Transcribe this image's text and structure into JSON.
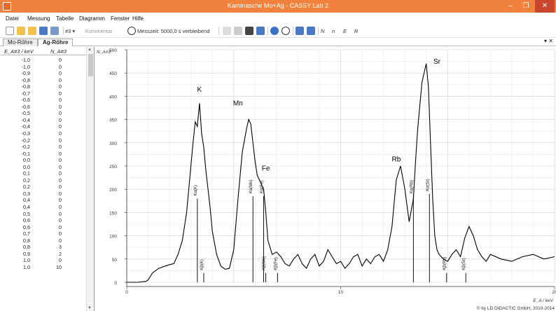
{
  "window": {
    "title": "Kaminasche Mo+Ag - CASSY Lab 2",
    "minimize": "–",
    "maximize": "❐",
    "close": "✕"
  },
  "menu": [
    "Datei",
    "Messung",
    "Tabelle",
    "Diagramm",
    "Fenster",
    "Hilfe"
  ],
  "toolbar": {
    "channel": "#3 ▾",
    "comment_placeholder": "Kommentar",
    "measure_time": "Messzeit: 5000,0 s verbleibend",
    "sym1": "N",
    "sym2": "n",
    "sym3": "E",
    "sym4": "R"
  },
  "tabs": [
    "Mo-Röhre",
    "Ag-Röhre"
  ],
  "table": {
    "col1": "E_A#3 / keV",
    "col2": "N_A#3",
    "rows": [
      [
        "-1,0",
        "0"
      ],
      [
        "-1,0",
        "0"
      ],
      [
        "-0,9",
        "0"
      ],
      [
        "-0,8",
        "0"
      ],
      [
        "-0,8",
        "0"
      ],
      [
        "-0,7",
        "0"
      ],
      [
        "-0,6",
        "0"
      ],
      [
        "-0,6",
        "0"
      ],
      [
        "-0,5",
        "0"
      ],
      [
        "-0,4",
        "0"
      ],
      [
        "-0,4",
        "0"
      ],
      [
        "-0,3",
        "0"
      ],
      [
        "-0,2",
        "0"
      ],
      [
        "-0,2",
        "0"
      ],
      [
        "-0,1",
        "0"
      ],
      [
        "0,0",
        "0"
      ],
      [
        "0,0",
        "0"
      ],
      [
        "0,1",
        "0"
      ],
      [
        "0,2",
        "0"
      ],
      [
        "0,2",
        "0"
      ],
      [
        "0,3",
        "0"
      ],
      [
        "0,4",
        "0"
      ],
      [
        "0,4",
        "0"
      ],
      [
        "0,5",
        "0"
      ],
      [
        "0,6",
        "0"
      ],
      [
        "0,6",
        "0"
      ],
      [
        "0,7",
        "0"
      ],
      [
        "0,8",
        "0"
      ],
      [
        "0,8",
        "3"
      ],
      [
        "0,9",
        "2"
      ],
      [
        "1,0",
        "0"
      ],
      [
        "1,0",
        "10"
      ]
    ]
  },
  "chart_data": {
    "type": "line",
    "ylabel": "N_A#3",
    "xlabel": "E_A / keV",
    "xlim": [
      0,
      20
    ],
    "ylim": [
      0,
      500
    ],
    "yticks": [
      "0",
      "50",
      "100",
      "150",
      "200",
      "250",
      "300",
      "350",
      "400",
      "450",
      "500"
    ],
    "xticks": [
      "0",
      "10",
      "20"
    ],
    "peaks": [
      {
        "label": "K",
        "x": 3.4,
        "y": 410
      },
      {
        "label": "Mn",
        "x": 5.2,
        "y": 380
      },
      {
        "label": "Fe",
        "x": 6.5,
        "y": 240
      },
      {
        "label": "Rb",
        "x": 12.6,
        "y": 260
      },
      {
        "label": "Sr",
        "x": 14.5,
        "y": 470
      }
    ],
    "markers": [
      {
        "label": "Kα(K)",
        "x": 3.3,
        "y": 180
      },
      {
        "label": "Kβ(K)",
        "x": 3.6,
        "y": 20
      },
      {
        "label": "Kα(Mn)",
        "x": 5.9,
        "y": 185
      },
      {
        "label": "Kβ(Mn)",
        "x": 6.5,
        "y": 20
      },
      {
        "label": "Kα(Fe)",
        "x": 6.4,
        "y": 185
      },
      {
        "label": "Kβ(Fe)",
        "x": 7.05,
        "y": 20
      },
      {
        "label": "Kα(Rb)",
        "x": 13.4,
        "y": 185
      },
      {
        "label": "Kα(Sr)",
        "x": 14.15,
        "y": 190
      },
      {
        "label": "Kβ(Rb)",
        "x": 14.95,
        "y": 20
      },
      {
        "label": "Kβ(Sr)",
        "x": 15.85,
        "y": 20
      }
    ],
    "series": [
      {
        "x": [
          0,
          0.5,
          0.9,
          1.0,
          1.2,
          1.5,
          1.8,
          2.0,
          2.2,
          2.4,
          2.6,
          2.8,
          3.0,
          3.1,
          3.2,
          3.3,
          3.4,
          3.5,
          3.6,
          3.7,
          3.8,
          3.9,
          4.0,
          4.2,
          4.4,
          4.6,
          4.8,
          5.0,
          5.2,
          5.4,
          5.6,
          5.7,
          5.8,
          5.9,
          6.0,
          6.1,
          6.2,
          6.3,
          6.4,
          6.5,
          6.6,
          6.7,
          6.8,
          7.0,
          7.2,
          7.4,
          7.6,
          7.8,
          8.0,
          8.2,
          8.4,
          8.6,
          8.8,
          9.0,
          9.2,
          9.4,
          9.6,
          9.8,
          10.0,
          10.2,
          10.4,
          10.6,
          10.8,
          11.0,
          11.2,
          11.4,
          11.6,
          11.8,
          12.0,
          12.2,
          12.4,
          12.6,
          12.8,
          13.0,
          13.2,
          13.4,
          13.5,
          13.6,
          13.8,
          14.0,
          14.1,
          14.2,
          14.3,
          14.4,
          14.5,
          14.6,
          14.8,
          15.0,
          15.2,
          15.4,
          15.6,
          15.8,
          16.0,
          16.2,
          16.4,
          16.6,
          16.8,
          17.0,
          17.5,
          18.0,
          18.5,
          19.0,
          19.5,
          20.0
        ],
        "y": [
          0,
          0,
          2,
          5,
          20,
          30,
          35,
          38,
          40,
          60,
          90,
          150,
          250,
          300,
          345,
          335,
          385,
          320,
          290,
          240,
          200,
          160,
          110,
          60,
          35,
          28,
          30,
          70,
          180,
          280,
          330,
          350,
          340,
          300,
          260,
          230,
          220,
          210,
          200,
          150,
          90,
          75,
          60,
          65,
          55,
          40,
          35,
          50,
          60,
          40,
          30,
          50,
          60,
          35,
          45,
          70,
          55,
          40,
          45,
          30,
          40,
          55,
          60,
          35,
          50,
          40,
          55,
          60,
          45,
          70,
          120,
          220,
          250,
          200,
          130,
          180,
          260,
          330,
          430,
          470,
          420,
          300,
          180,
          100,
          70,
          60,
          50,
          45,
          60,
          70,
          55,
          95,
          120,
          100,
          70,
          55,
          45,
          60,
          50,
          45,
          55,
          60,
          50,
          55
        ]
      }
    ]
  },
  "copyright": "© by LD DIDACTIC GmbH, 2010-2014"
}
